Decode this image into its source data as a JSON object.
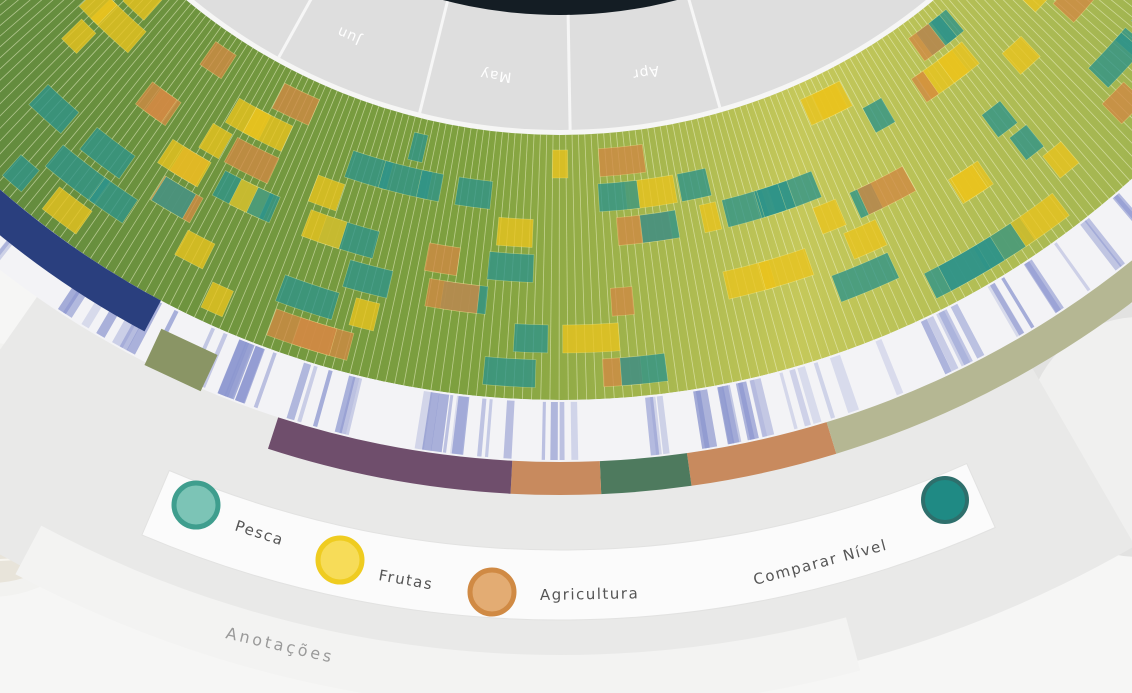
{
  "months": [
    "Jun",
    "May",
    "Apr"
  ],
  "legend": [
    {
      "label": "Pesca"
    },
    {
      "label": "Frutas"
    },
    {
      "label": "Agricultura"
    }
  ],
  "compare_button": "Comparar Nível",
  "annotations_label": "Anotações"
}
